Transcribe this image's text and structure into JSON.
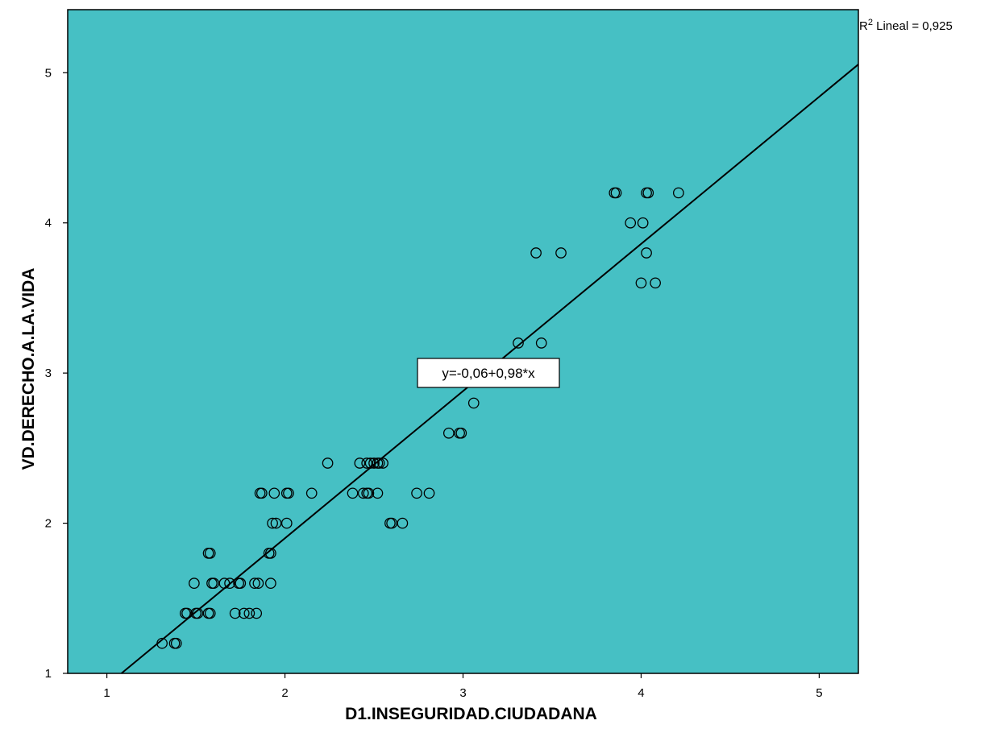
{
  "chart_data": {
    "type": "scatter",
    "xlabel": "D1.INSEGURIDAD.CIUDADANA",
    "ylabel": "VD.DERECHO.A.LA.VIDA",
    "xlim": [
      0.78,
      5.22
    ],
    "ylim": [
      1.0,
      5.42
    ],
    "xticks": [
      "1",
      "2",
      "3",
      "4",
      "5"
    ],
    "yticks": [
      "1",
      "2",
      "3",
      "4",
      "5"
    ],
    "grid": false,
    "colors": {
      "plot_background": "#46c0c4",
      "marker_stroke": "#000000",
      "line": "#000000"
    },
    "fit_line": {
      "intercept": -0.06,
      "slope": 0.98,
      "label": "y=-0,06+0,98*x"
    },
    "r2_annotation": {
      "prefix": "R",
      "superscript": "2",
      "suffix": " Lineal = 0,925"
    },
    "points": [
      [
        1.31,
        1.2
      ],
      [
        1.39,
        1.2
      ],
      [
        1.38,
        1.2
      ],
      [
        1.44,
        1.4
      ],
      [
        1.45,
        1.4
      ],
      [
        1.5,
        1.4
      ],
      [
        1.51,
        1.4
      ],
      [
        1.57,
        1.4
      ],
      [
        1.58,
        1.4
      ],
      [
        1.72,
        1.4
      ],
      [
        1.77,
        1.4
      ],
      [
        1.8,
        1.4
      ],
      [
        1.84,
        1.4
      ],
      [
        1.49,
        1.6
      ],
      [
        1.59,
        1.6
      ],
      [
        1.6,
        1.6
      ],
      [
        1.66,
        1.6
      ],
      [
        1.69,
        1.6
      ],
      [
        1.74,
        1.6
      ],
      [
        1.75,
        1.6
      ],
      [
        1.83,
        1.6
      ],
      [
        1.85,
        1.6
      ],
      [
        1.92,
        1.6
      ],
      [
        1.57,
        1.8
      ],
      [
        1.58,
        1.8
      ],
      [
        1.91,
        1.8
      ],
      [
        1.92,
        1.8
      ],
      [
        1.93,
        2.0
      ],
      [
        1.95,
        2.0
      ],
      [
        2.01,
        2.0
      ],
      [
        2.59,
        2.0
      ],
      [
        2.6,
        2.0
      ],
      [
        2.66,
        2.0
      ],
      [
        1.86,
        2.2
      ],
      [
        1.87,
        2.2
      ],
      [
        1.94,
        2.2
      ],
      [
        2.01,
        2.2
      ],
      [
        2.02,
        2.2
      ],
      [
        2.15,
        2.2
      ],
      [
        2.38,
        2.2
      ],
      [
        2.44,
        2.2
      ],
      [
        2.46,
        2.2
      ],
      [
        2.47,
        2.2
      ],
      [
        2.52,
        2.2
      ],
      [
        2.74,
        2.2
      ],
      [
        2.81,
        2.2
      ],
      [
        2.24,
        2.4
      ],
      [
        2.42,
        2.4
      ],
      [
        2.46,
        2.4
      ],
      [
        2.48,
        2.4
      ],
      [
        2.5,
        2.4
      ],
      [
        2.52,
        2.4
      ],
      [
        2.53,
        2.4
      ],
      [
        2.55,
        2.4
      ],
      [
        2.92,
        2.6
      ],
      [
        2.98,
        2.6
      ],
      [
        2.99,
        2.6
      ],
      [
        3.06,
        2.8
      ],
      [
        3.31,
        3.2
      ],
      [
        3.44,
        3.2
      ],
      [
        3.41,
        3.8
      ],
      [
        3.55,
        3.8
      ],
      [
        4.03,
        3.8
      ],
      [
        4.0,
        3.6
      ],
      [
        4.08,
        3.6
      ],
      [
        3.94,
        4.0
      ],
      [
        4.01,
        4.0
      ],
      [
        3.85,
        4.2
      ],
      [
        3.86,
        4.2
      ],
      [
        4.03,
        4.2
      ],
      [
        4.04,
        4.2
      ],
      [
        4.21,
        4.2
      ]
    ]
  }
}
